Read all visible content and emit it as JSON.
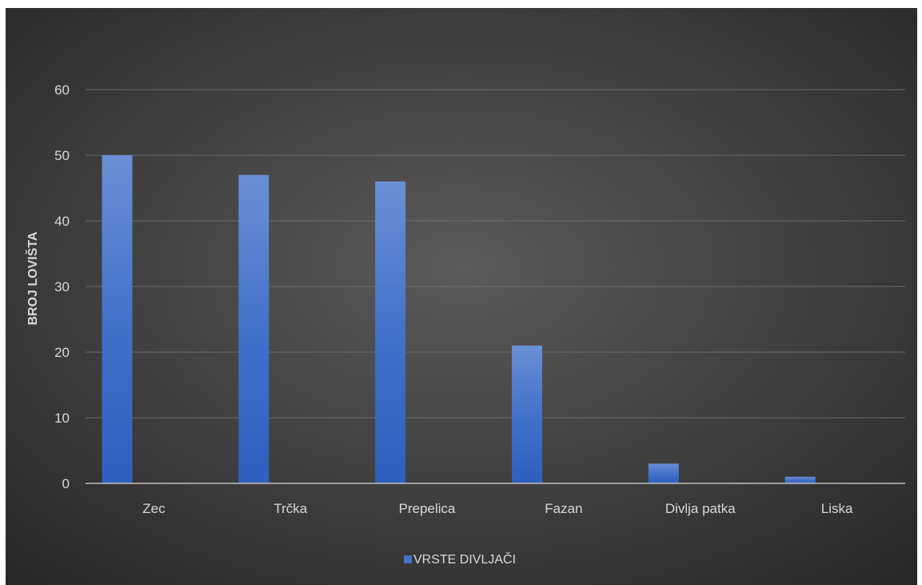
{
  "chart_data": {
    "type": "bar",
    "title": "",
    "xlabel": "",
    "ylabel": "BROJ LOVIŠTA",
    "categories": [
      "Zec",
      "Trčka",
      "Prepelica",
      "Fazan",
      "Divlja patka",
      "Liska"
    ],
    "series": [
      {
        "name": "VRSTE DIVLJAČI",
        "values": [
          50,
          47,
          46,
          21,
          3,
          1
        ],
        "color": "#4472c4"
      }
    ],
    "ylim": [
      0,
      60
    ],
    "yticks": [
      "0",
      "10",
      "20",
      "30",
      "40",
      "50",
      "60"
    ],
    "grid": true,
    "legend_position": "bottom",
    "background_color": "#404040",
    "text_color": "#d9d9d9"
  }
}
